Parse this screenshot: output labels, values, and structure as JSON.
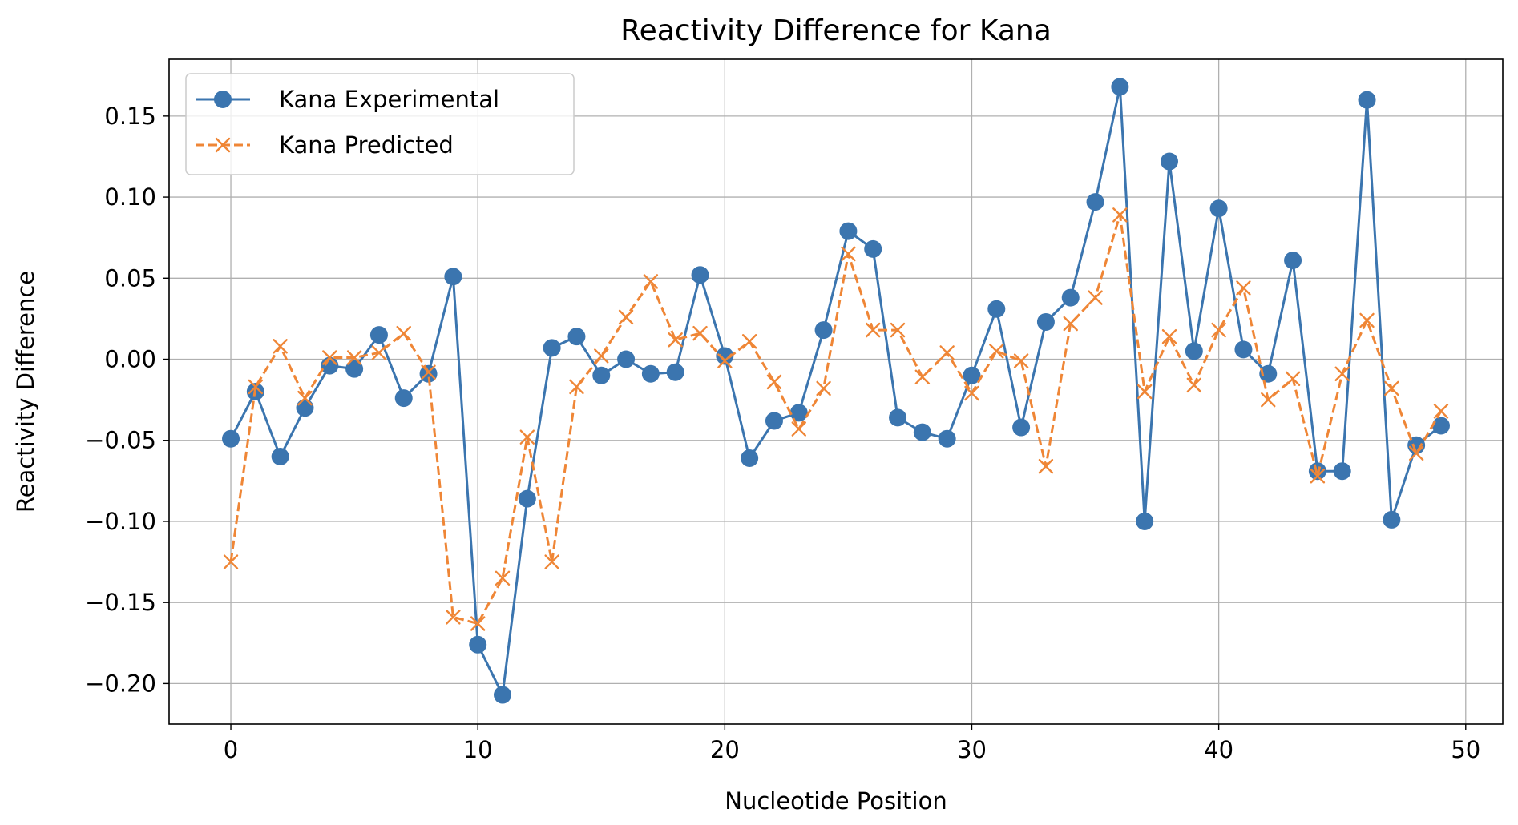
{
  "chart_data": {
    "type": "line",
    "title": "Reactivity Difference for Kana",
    "xlabel": "Nucleotide Position",
    "ylabel": "Reactivity Difference",
    "xlim": [
      -2.5,
      51.5
    ],
    "ylim": [
      -0.225,
      0.185
    ],
    "xticks": [
      0,
      10,
      20,
      30,
      40,
      50
    ],
    "xtick_labels": [
      "0",
      "10",
      "20",
      "30",
      "40",
      "50"
    ],
    "yticks": [
      -0.2,
      -0.15,
      -0.1,
      -0.05,
      0.0,
      0.05,
      0.1,
      0.15
    ],
    "ytick_labels": [
      "−0.20",
      "−0.15",
      "−0.10",
      "−0.05",
      "0.00",
      "0.05",
      "0.10",
      "0.15"
    ],
    "grid": true,
    "legend_position": "top-left",
    "x": [
      0,
      1,
      2,
      3,
      4,
      5,
      6,
      7,
      8,
      9,
      10,
      11,
      12,
      13,
      14,
      15,
      16,
      17,
      18,
      19,
      20,
      21,
      22,
      23,
      24,
      25,
      26,
      27,
      28,
      29,
      30,
      31,
      32,
      33,
      34,
      35,
      36,
      37,
      38,
      39,
      40,
      41,
      42,
      43,
      44,
      45,
      46,
      47,
      48,
      49
    ],
    "series": [
      {
        "name": "Kana Experimental",
        "color": "#3b75af",
        "line_style": "solid",
        "marker": "circle",
        "values": [
          -0.049,
          -0.02,
          -0.06,
          -0.03,
          -0.004,
          -0.006,
          0.015,
          -0.024,
          -0.009,
          0.051,
          -0.176,
          -0.207,
          -0.086,
          0.007,
          0.014,
          -0.01,
          0.0,
          -0.009,
          -0.008,
          0.052,
          0.002,
          -0.061,
          -0.038,
          -0.033,
          0.018,
          0.079,
          0.068,
          -0.036,
          -0.045,
          -0.049,
          -0.01,
          0.031,
          -0.042,
          0.023,
          0.038,
          0.097,
          0.168,
          -0.1,
          0.122,
          0.005,
          0.093,
          0.006,
          -0.009,
          0.061,
          -0.069,
          -0.069,
          0.16,
          -0.099,
          -0.053,
          -0.041
        ]
      },
      {
        "name": "Kana Predicted",
        "color": "#ef8636",
        "line_style": "dashed",
        "marker": "x",
        "values": [
          -0.125,
          -0.017,
          0.008,
          -0.024,
          0.001,
          0.001,
          0.004,
          0.016,
          -0.008,
          -0.159,
          -0.163,
          -0.135,
          -0.048,
          -0.125,
          -0.017,
          0.002,
          0.026,
          0.048,
          0.012,
          0.016,
          -0.001,
          0.011,
          -0.014,
          -0.043,
          -0.018,
          0.065,
          0.018,
          0.018,
          -0.011,
          0.004,
          -0.021,
          0.005,
          -0.001,
          -0.066,
          0.022,
          0.038,
          0.089,
          -0.02,
          0.014,
          -0.016,
          0.018,
          0.044,
          -0.025,
          -0.012,
          -0.072,
          -0.009,
          0.024,
          -0.018,
          -0.058,
          -0.032
        ]
      }
    ]
  }
}
